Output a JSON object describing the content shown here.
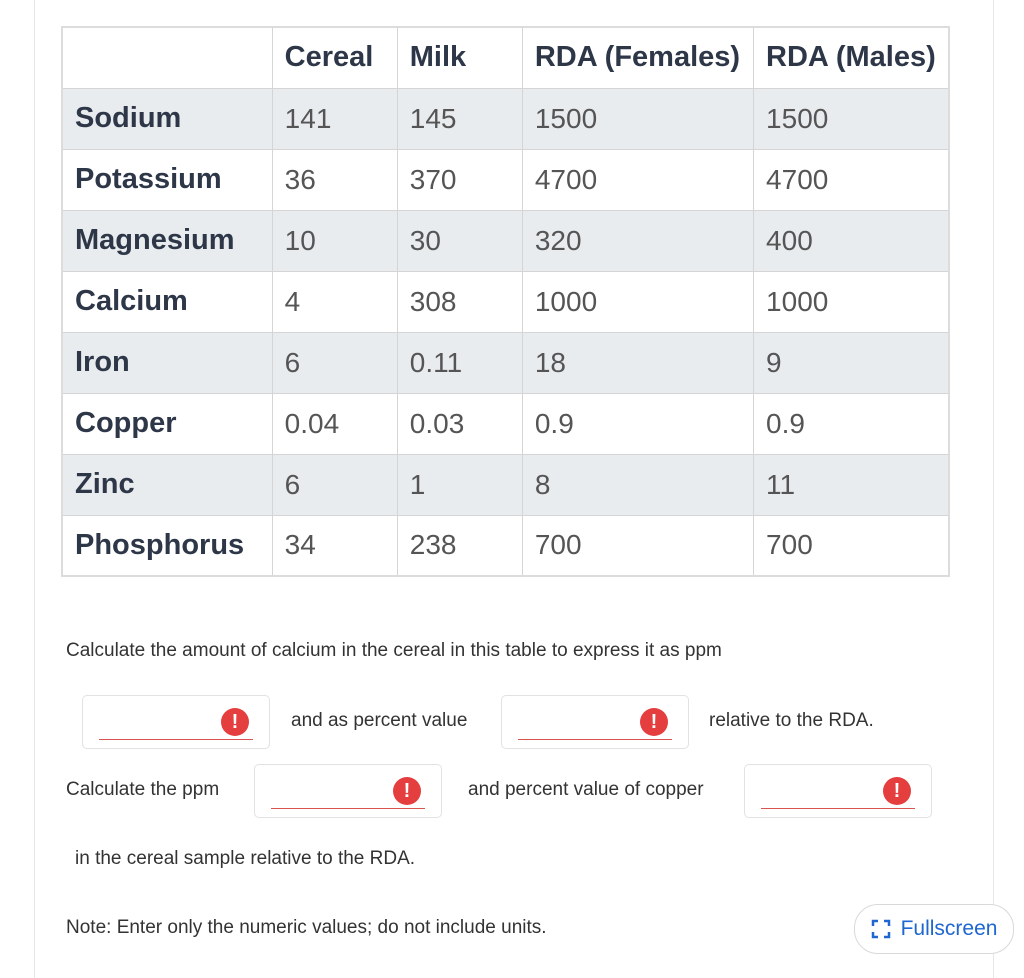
{
  "table": {
    "headers": [
      "",
      "Cereal",
      "Milk",
      "RDA (Females)",
      "RDA (Males)"
    ],
    "rows": [
      {
        "label": "Sodium",
        "cells": [
          "141",
          "145",
          "1500",
          "1500"
        ]
      },
      {
        "label": "Potassium",
        "cells": [
          "36",
          "370",
          "4700",
          "4700"
        ]
      },
      {
        "label": "Magnesium",
        "cells": [
          "10",
          "30",
          "320",
          "400"
        ]
      },
      {
        "label": "Calcium",
        "cells": [
          "4",
          "308",
          "1000",
          "1000"
        ]
      },
      {
        "label": "Iron",
        "cells": [
          "6",
          "0.11",
          "18",
          "9"
        ]
      },
      {
        "label": "Copper",
        "cells": [
          "0.04",
          "0.03",
          "0.9",
          "0.9"
        ]
      },
      {
        "label": "Zinc",
        "cells": [
          "6",
          "1",
          "8",
          "11"
        ]
      },
      {
        "label": "Phosphorus",
        "cells": [
          "34",
          "238",
          "700",
          "700"
        ]
      }
    ]
  },
  "question": {
    "line1": "Calculate the amount of calcium in the cereal in this table to express it as ppm",
    "and_percent": "and as percent value",
    "relative_rda": "relative to the RDA.",
    "calc_ppm": "Calculate the ppm",
    "percent_copper": "and percent value of copper",
    "in_cereal": "in the cereal sample relative to the RDA.",
    "note": "Note: Enter only the numeric values; do not include units."
  },
  "inputs": {
    "calcium_ppm": "",
    "calcium_percent": "",
    "copper_ppm": "",
    "copper_percent": "",
    "error_glyph": "!"
  },
  "fullscreen": {
    "label": "Fullscreen",
    "icon": "fullscreen-icon"
  },
  "colors": {
    "error": "#e53e3e",
    "accent": "#1e66d0",
    "row_shade": "#e9ecef"
  }
}
